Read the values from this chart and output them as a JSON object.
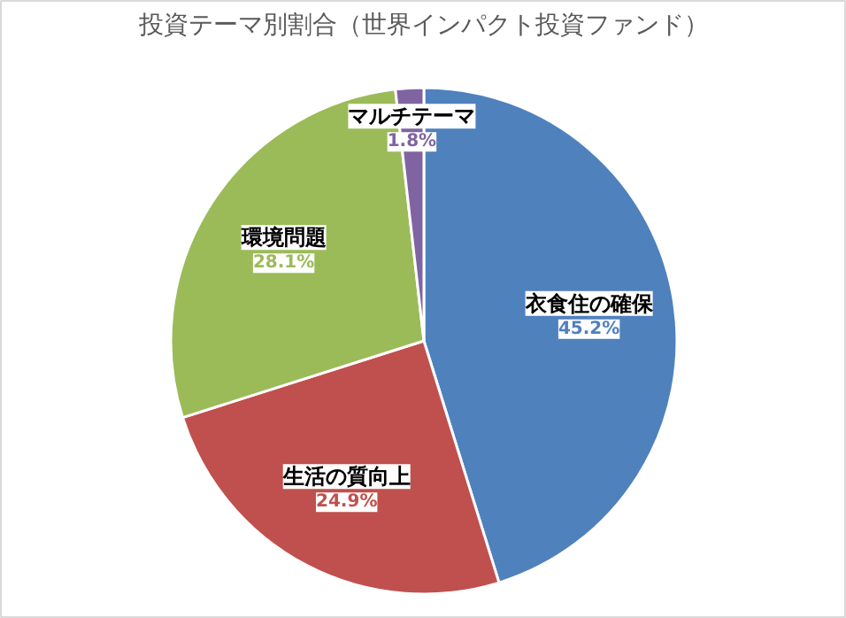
{
  "chart_data": {
    "type": "pie",
    "title": "投資テーマ別割合（世界インパクト投資ファンド）",
    "categories": [
      "衣食住の確保",
      "生活の質向上",
      "環境問題",
      "マルチテーマ"
    ],
    "values": [
      45.2,
      24.9,
      28.1,
      1.8
    ],
    "colors": [
      "#4f81bd",
      "#c0504d",
      "#9bbb59",
      "#8064a2"
    ],
    "value_labels": [
      "45.2%",
      "24.9%",
      "28.1%",
      "1.8%"
    ]
  }
}
